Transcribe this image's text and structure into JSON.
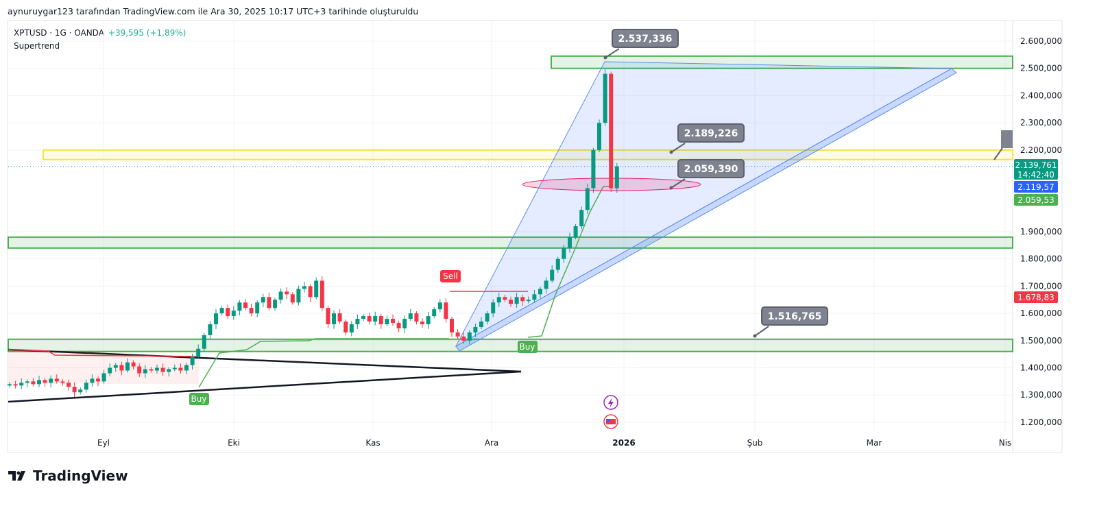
{
  "header": {
    "caption": "aynuruygar123 tarafından TradingView.com ile Ara 30, 2025 10:17 UTC+3 tarihinde oluşturuldu",
    "symbol": "XPTUSD · 1G · OANDA",
    "change": "+39,595 (+1,89%)",
    "indicator": "Supertrend"
  },
  "chart_data": {
    "type": "candlestick",
    "title": "XPTUSD · 1G · OANDA",
    "ylim": [
      1150,
      2650
    ],
    "y_ticks": [
      "2.600,000",
      "2.500,000",
      "2.400,000",
      "2.300,000",
      "2.200,000",
      "1.900,000",
      "1.800,000",
      "1.700,000",
      "1.600,000",
      "1.500,000",
      "1.400,000",
      "1.300,000",
      "1.200,000"
    ],
    "y_tick_values": [
      2600,
      2500,
      2400,
      2300,
      2200,
      1900,
      1800,
      1700,
      1600,
      1500,
      1400,
      1300,
      1200
    ],
    "x_ticks": [
      "Eyl",
      "Eki",
      "Kas",
      "Ara",
      "2026",
      "Şub",
      "Mar",
      "Nis"
    ],
    "closes": [
      1340,
      1335,
      1345,
      1350,
      1340,
      1355,
      1345,
      1360,
      1350,
      1345,
      1330,
      1310,
      1320,
      1345,
      1360,
      1350,
      1380,
      1400,
      1410,
      1390,
      1420,
      1405,
      1380,
      1395,
      1390,
      1400,
      1385,
      1395,
      1400,
      1390,
      1410,
      1440,
      1470,
      1520,
      1560,
      1600,
      1620,
      1590,
      1610,
      1640,
      1620,
      1600,
      1640,
      1660,
      1620,
      1650,
      1680,
      1670,
      1640,
      1690,
      1700,
      1660,
      1720,
      1620,
      1560,
      1600,
      1570,
      1530,
      1560,
      1580,
      1590,
      1570,
      1590,
      1560,
      1580,
      1565,
      1545,
      1580,
      1600,
      1570,
      1560,
      1590,
      1615,
      1640,
      1580,
      1530,
      1515,
      1500,
      1530,
      1550,
      1570,
      1600,
      1640,
      1660,
      1650,
      1635,
      1660,
      1645,
      1650,
      1670,
      1690,
      1720,
      1760,
      1800,
      1840,
      1880,
      1920,
      1980,
      2060,
      2200,
      2300,
      2480,
      2060,
      2140
    ],
    "price_labels": [
      {
        "text": "2.139,761",
        "sub": "14:42:40",
        "value": 2139.761,
        "color": "#089981"
      },
      {
        "text": "2.119,57",
        "value": 2119.57,
        "color": "#2962ff"
      },
      {
        "text": "2.059,53",
        "value": 2059.53,
        "color": "#4caf50"
      },
      {
        "text": "1.678,83",
        "value": 1678.83,
        "color": "#f23645"
      }
    ],
    "callouts": [
      {
        "text": "2.537,336",
        "value": 2537.336
      },
      {
        "text": "2.189,226",
        "value": 2189.226
      },
      {
        "text": "2.059,390",
        "value": 2059.39
      },
      {
        "text": "1.516,765",
        "value": 1516.765
      }
    ],
    "signals": {
      "sell": "Sell",
      "buy1": "Buy",
      "buy2": "Buy"
    },
    "colors": {
      "up": "#089981",
      "down": "#f23645",
      "zone": "#4caf50",
      "yellow": "#f5e339"
    }
  },
  "footer": {
    "logo": "TradingView"
  }
}
